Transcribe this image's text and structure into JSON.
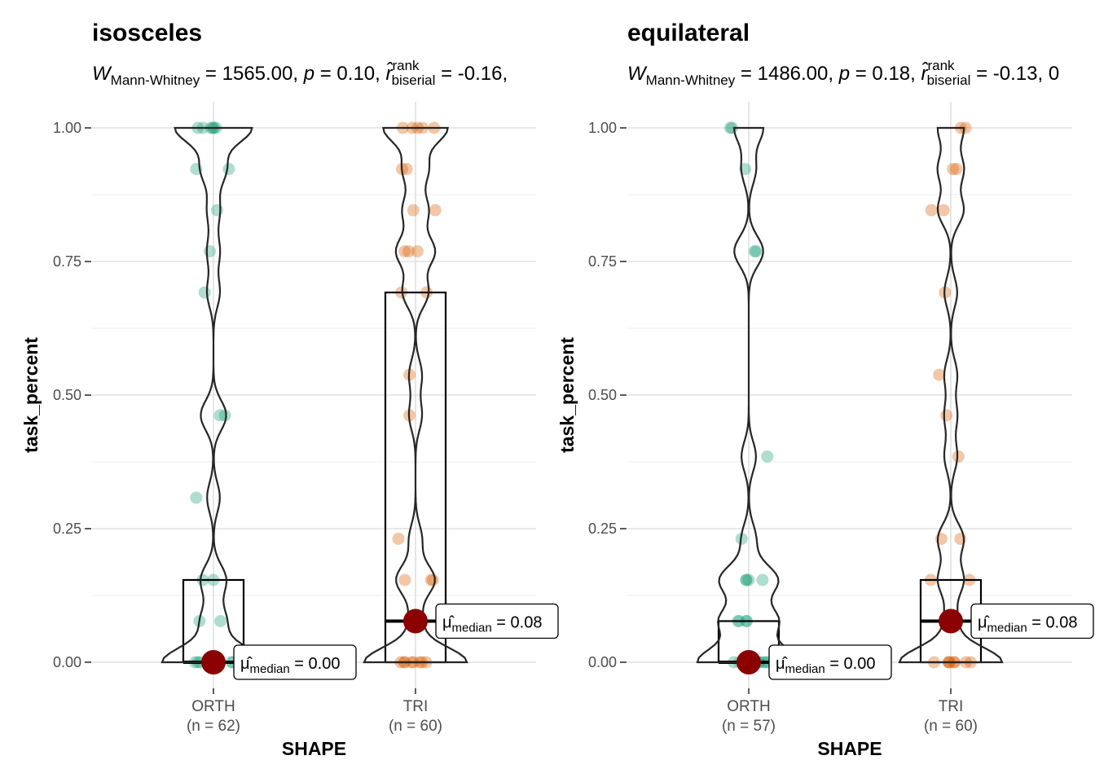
{
  "chart_data": [
    {
      "type": "violin-box-scatter",
      "title": "isosceles",
      "subtitle": {
        "stat_symbol": "W",
        "stat_sub": "Mann-Whitney",
        "stat_value": " = 1565.00, ",
        "p_symbol": "p",
        "p_value": " = 0.10, ",
        "es_symbol": "r̂",
        "es_sup": "rank",
        "es_sub": "biserial",
        "es_value": " = -0.16, "
      },
      "xlabel": "SHAPE",
      "ylabel": "task_percent",
      "ylim": [
        -0.08,
        1.05
      ],
      "yticks": [
        0,
        0.25,
        0.5,
        0.75,
        1
      ],
      "ytick_labels": [
        "0.00",
        "0.25",
        "0.50",
        "0.75",
        "1.00"
      ],
      "groups": [
        {
          "name": "ORTH",
          "n_label": "(n = 62)",
          "color": "#1b9e77",
          "points": [
            1.0,
            1.0,
            1.0,
            1.0,
            1.0,
            1.0,
            0.923,
            0.923,
            0.846,
            0.769,
            0.692,
            0.462,
            0.462,
            0.308,
            0.154,
            0.154,
            0.077,
            0.077,
            0,
            0,
            0,
            0,
            0,
            0,
            0,
            0
          ],
          "box": {
            "q1": 0.0,
            "median": 0.0,
            "q3": 0.154
          },
          "median_label": {
            "mu": "μ̂",
            "sub": "median",
            "value": " = 0.00"
          },
          "median_value": 0.0
        },
        {
          "name": "TRI",
          "n_label": "(n = 60)",
          "color": "#d95f02",
          "points": [
            1.0,
            1.0,
            1.0,
            1.0,
            1.0,
            0.923,
            0.923,
            0.846,
            0.846,
            0.769,
            0.769,
            0.769,
            0.692,
            0.692,
            0.538,
            0.462,
            0.231,
            0.154,
            0.154,
            0.154,
            0.077,
            0,
            0,
            0,
            0,
            0,
            0,
            0,
            0
          ],
          "box": {
            "q1": 0.0,
            "median": 0.077,
            "q3": 0.692
          },
          "median_label": {
            "mu": "μ̂",
            "sub": "median",
            "value": " = 0.08"
          },
          "median_value": 0.077
        }
      ]
    },
    {
      "type": "violin-box-scatter",
      "title": "equilateral",
      "subtitle": {
        "stat_symbol": "W",
        "stat_sub": "Mann-Whitney",
        "stat_value": " = 1486.00, ",
        "p_symbol": "p",
        "p_value": " = 0.18, ",
        "es_symbol": "r̂",
        "es_sup": "rank",
        "es_sub": "biserial",
        "es_value": " = -0.13, 0"
      },
      "xlabel": "SHAPE",
      "ylabel": "task_percent",
      "ylim": [
        -0.08,
        1.05
      ],
      "yticks": [
        0,
        0.25,
        0.5,
        0.75,
        1
      ],
      "ytick_labels": [
        "0.00",
        "0.25",
        "0.50",
        "0.75",
        "1.00"
      ],
      "groups": [
        {
          "name": "ORTH",
          "n_label": "(n = 57)",
          "color": "#1b9e77",
          "points": [
            1.0,
            1.0,
            0.923,
            0.769,
            0.769,
            0.385,
            0.231,
            0.154,
            0.154,
            0.154,
            0.154,
            0.077,
            0.077,
            0.077,
            0.077,
            0,
            0,
            0,
            0,
            0,
            0,
            0
          ],
          "box": {
            "q1": 0.0,
            "median": 0.0,
            "q3": 0.077
          },
          "median_label": {
            "mu": "μ̂",
            "sub": "median",
            "value": " = 0.00"
          },
          "median_value": 0.0
        },
        {
          "name": "TRI",
          "n_label": "(n = 60)",
          "color": "#d95f02",
          "points": [
            1.0,
            1.0,
            0.923,
            0.923,
            0.846,
            0.846,
            0.692,
            0.538,
            0.462,
            0.385,
            0.231,
            0.231,
            0.154,
            0.154,
            0.077,
            0,
            0,
            0,
            0,
            0,
            0,
            0,
            0
          ],
          "box": {
            "q1": 0.0,
            "median": 0.077,
            "q3": 0.154
          },
          "median_label": {
            "mu": "μ̂",
            "sub": "median",
            "value": " = 0.08"
          },
          "median_value": 0.077
        }
      ]
    }
  ]
}
